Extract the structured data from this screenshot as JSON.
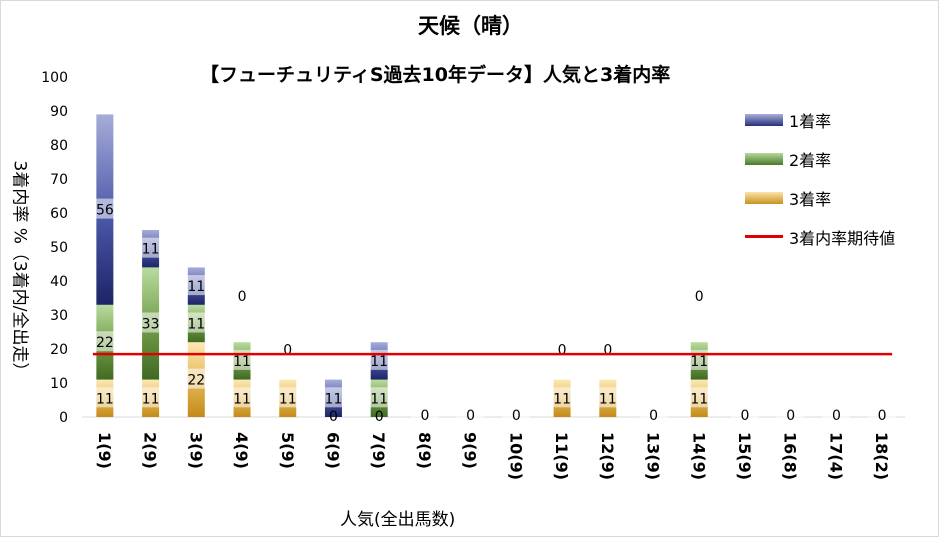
{
  "title": "天候（晴）",
  "subtitle": "【フューチュリティS過去10年データ】人気と3着内率",
  "colors": {
    "first": "#3b4a96",
    "second": "#5d8c3a",
    "third": "#d4a33b",
    "expected": "#e00000"
  },
  "chart_data": {
    "type": "bar",
    "stacked": true,
    "xlabel": "人気(全出馬数)",
    "ylabel": "3着内率 %（3着内/全出走）",
    "ylim": [
      0,
      100
    ],
    "yticks": [
      0,
      10,
      20,
      30,
      40,
      50,
      60,
      70,
      80,
      90,
      100
    ],
    "categories": [
      "1(9)",
      "2(9)",
      "3(9)",
      "4(9)",
      "5(9)",
      "6(9)",
      "7(9)",
      "8(9)",
      "9(9)",
      "10(9)",
      "11(9)",
      "12(9)",
      "13(9)",
      "14(9)",
      "15(9)",
      "16(8)",
      "17(4)",
      "18(2)"
    ],
    "series": [
      {
        "name": "3着率",
        "key": "third",
        "values": [
          11,
          11,
          22,
          11,
          11,
          0,
          0,
          0,
          0,
          0,
          11,
          11,
          0,
          11,
          0,
          0,
          0,
          0
        ]
      },
      {
        "name": "2着率",
        "key": "second",
        "values": [
          22,
          33,
          11,
          11,
          0,
          0,
          11,
          0,
          0,
          0,
          0,
          0,
          0,
          11,
          0,
          0,
          0,
          0
        ]
      },
      {
        "name": "1着率",
        "key": "first",
        "values": [
          56,
          11,
          11,
          0,
          0,
          11,
          11,
          0,
          0,
          0,
          0,
          0,
          0,
          0,
          0,
          0,
          0,
          0
        ]
      }
    ],
    "expected_line": {
      "name": "3着内率期待値",
      "value": 18.5
    },
    "label_positions": [
      [
        11,
        11,
        22,
        11,
        11,
        null,
        null,
        0,
        0,
        0,
        11,
        11,
        0,
        11,
        0,
        0,
        0,
        0
      ],
      [
        22,
        33,
        11,
        11,
        0,
        null,
        11,
        null,
        null,
        null,
        0,
        0,
        null,
        11,
        null,
        null,
        null,
        null
      ],
      [
        56,
        11,
        11,
        0,
        null,
        11,
        11,
        null,
        null,
        null,
        null,
        null,
        null,
        0,
        null,
        null,
        null,
        null
      ]
    ],
    "zero_labels_6_7": [
      "0",
      "0"
    ],
    "legend": {
      "position": "right"
    }
  }
}
